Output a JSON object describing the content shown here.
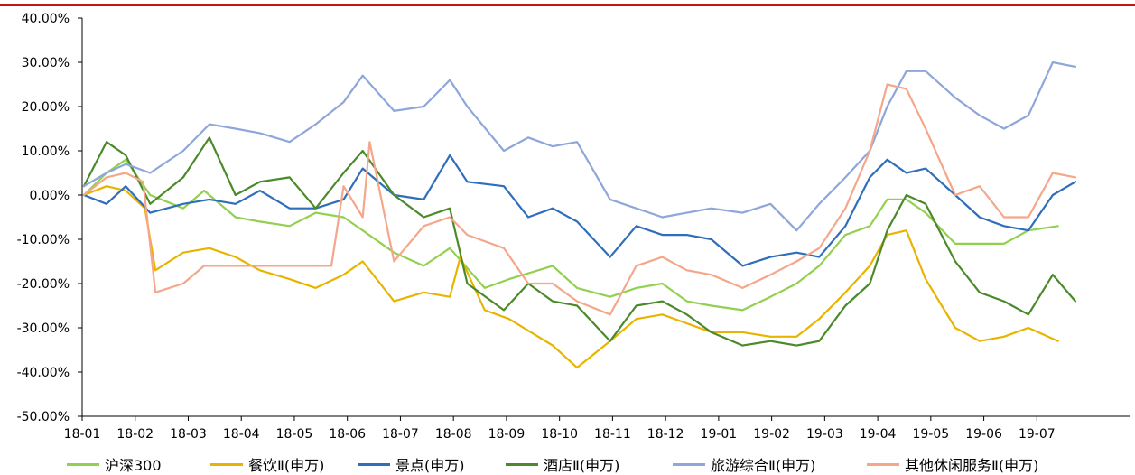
{
  "accent_color": "#c0171c",
  "chart_data": {
    "type": "line",
    "title": "",
    "xlabel": "",
    "ylabel": "",
    "ylim": [
      -50,
      40
    ],
    "y_unit": "%",
    "y_ticks": [
      "40.00%",
      "30.00%",
      "20.00%",
      "10.00%",
      "0.00%",
      "-10.00%",
      "-20.00%",
      "-30.00%",
      "-40.00%",
      "-50.00%"
    ],
    "x_ticks": [
      "18-01",
      "18-02",
      "18-03",
      "18-04",
      "18-05",
      "18-06",
      "18-07",
      "18-08",
      "18-09",
      "18-10",
      "18-11",
      "18-12",
      "19-01",
      "19-02",
      "19-03",
      "19-04",
      "19-05",
      "19-06",
      "19-07"
    ],
    "grid": false,
    "legend_position": "bottom",
    "series": [
      {
        "name": "沪深300",
        "color": "#92d050",
        "x": [
          "2018-01-02",
          "2018-01-15",
          "2018-01-26",
          "2018-02-09",
          "2018-02-28",
          "2018-03-12",
          "2018-03-30",
          "2018-04-13",
          "2018-04-30",
          "2018-05-15",
          "2018-05-31",
          "2018-06-11",
          "2018-06-29",
          "2018-07-16",
          "2018-07-31",
          "2018-08-20",
          "2018-09-03",
          "2018-09-28",
          "2018-10-12",
          "2018-10-31",
          "2018-11-15",
          "2018-11-30",
          "2018-12-14",
          "2018-12-28",
          "2019-01-15",
          "2019-01-31",
          "2019-02-15",
          "2019-02-28",
          "2019-03-15",
          "2019-03-29",
          "2019-04-08",
          "2019-04-19",
          "2019-04-30",
          "2019-05-17",
          "2019-05-31",
          "2019-06-14",
          "2019-06-28",
          "2019-07-15"
        ],
        "values": [
          0,
          5,
          8,
          0,
          -3,
          1,
          -5,
          -6,
          -7,
          -4,
          -5,
          -8,
          -13,
          -16,
          -12,
          -21,
          -19,
          -16,
          -21,
          -23,
          -21,
          -20,
          -24,
          -25,
          -26,
          -23,
          -20,
          -16,
          -9,
          -7,
          -1,
          -1,
          -4,
          -11,
          -11,
          -11,
          -8,
          -7
        ]
      },
      {
        "name": "餐饮Ⅱ(申万)",
        "color": "#e8b400",
        "x": [
          "2018-01-02",
          "2018-01-15",
          "2018-01-26",
          "2018-02-06",
          "2018-02-12",
          "2018-02-28",
          "2018-03-15",
          "2018-03-30",
          "2018-04-13",
          "2018-04-30",
          "2018-05-15",
          "2018-05-31",
          "2018-06-11",
          "2018-06-29",
          "2018-07-16",
          "2018-07-31",
          "2018-08-06",
          "2018-08-20",
          "2018-09-03",
          "2018-09-28",
          "2018-10-12",
          "2018-10-31",
          "2018-11-15",
          "2018-11-30",
          "2018-12-14",
          "2018-12-28",
          "2019-01-15",
          "2019-01-31",
          "2019-02-15",
          "2019-02-28",
          "2019-03-15",
          "2019-03-29",
          "2019-04-08",
          "2019-04-19",
          "2019-04-30",
          "2019-05-17",
          "2019-05-31",
          "2019-06-14",
          "2019-06-28",
          "2019-07-15"
        ],
        "values": [
          0,
          2,
          1,
          -3,
          -17,
          -13,
          -12,
          -14,
          -17,
          -19,
          -21,
          -18,
          -15,
          -24,
          -22,
          -23,
          -14,
          -26,
          -28,
          -34,
          -39,
          -33,
          -28,
          -27,
          -29,
          -31,
          -31,
          -32,
          -32,
          -28,
          -22,
          -16,
          -9,
          -8,
          -19,
          -30,
          -33,
          -32,
          -30,
          -33
        ]
      },
      {
        "name": "景点(申万)",
        "color": "#2f6eba",
        "x": [
          "2018-01-02",
          "2018-01-15",
          "2018-01-26",
          "2018-02-09",
          "2018-02-28",
          "2018-03-15",
          "2018-03-30",
          "2018-04-13",
          "2018-04-30",
          "2018-05-15",
          "2018-05-31",
          "2018-06-11",
          "2018-06-29",
          "2018-07-16",
          "2018-07-31",
          "2018-08-10",
          "2018-08-31",
          "2018-09-14",
          "2018-09-28",
          "2018-10-12",
          "2018-10-31",
          "2018-11-15",
          "2018-11-30",
          "2018-12-14",
          "2018-12-28",
          "2019-01-15",
          "2019-01-31",
          "2019-02-15",
          "2019-02-28",
          "2019-03-15",
          "2019-03-29",
          "2019-04-08",
          "2019-04-19",
          "2019-04-30",
          "2019-05-17",
          "2019-05-31",
          "2019-06-14",
          "2019-06-28",
          "2019-07-12",
          "2019-07-25"
        ],
        "values": [
          0,
          -2,
          2,
          -4,
          -2,
          -1,
          -2,
          1,
          -3,
          -3,
          -1,
          6,
          0,
          -1,
          9,
          3,
          2,
          -5,
          -3,
          -6,
          -14,
          -7,
          -9,
          -9,
          -10,
          -16,
          -14,
          -13,
          -14,
          -7,
          4,
          8,
          5,
          6,
          0,
          -5,
          -7,
          -8,
          0,
          3
        ]
      },
      {
        "name": "酒店Ⅱ(申万)",
        "color": "#4a8a2a",
        "x": [
          "2018-01-02",
          "2018-01-15",
          "2018-01-26",
          "2018-02-09",
          "2018-02-28",
          "2018-03-15",
          "2018-03-30",
          "2018-04-13",
          "2018-04-30",
          "2018-05-15",
          "2018-05-31",
          "2018-06-11",
          "2018-06-29",
          "2018-07-16",
          "2018-07-31",
          "2018-08-10",
          "2018-08-31",
          "2018-09-14",
          "2018-09-28",
          "2018-10-12",
          "2018-10-31",
          "2018-11-15",
          "2018-11-30",
          "2018-12-14",
          "2018-12-28",
          "2019-01-15",
          "2019-01-31",
          "2019-02-15",
          "2019-02-28",
          "2019-03-15",
          "2019-03-29",
          "2019-04-08",
          "2019-04-19",
          "2019-04-30",
          "2019-05-17",
          "2019-05-31",
          "2019-06-14",
          "2019-06-28",
          "2019-07-12",
          "2019-07-25"
        ],
        "values": [
          2,
          12,
          9,
          -2,
          4,
          13,
          0,
          3,
          4,
          -3,
          5,
          10,
          0,
          -5,
          -3,
          -20,
          -26,
          -20,
          -24,
          -25,
          -33,
          -25,
          -24,
          -27,
          -31,
          -34,
          -33,
          -34,
          -33,
          -25,
          -20,
          -8,
          0,
          -2,
          -15,
          -22,
          -24,
          -27,
          -18,
          -24
        ]
      },
      {
        "name": "旅游综合Ⅱ(申万)",
        "color": "#8ea6da",
        "x": [
          "2018-01-02",
          "2018-01-15",
          "2018-01-26",
          "2018-02-09",
          "2018-02-28",
          "2018-03-15",
          "2018-03-30",
          "2018-04-13",
          "2018-04-30",
          "2018-05-15",
          "2018-05-31",
          "2018-06-11",
          "2018-06-29",
          "2018-07-16",
          "2018-07-31",
          "2018-08-10",
          "2018-08-31",
          "2018-09-14",
          "2018-09-28",
          "2018-10-12",
          "2018-10-31",
          "2018-11-15",
          "2018-11-30",
          "2018-12-14",
          "2018-12-28",
          "2019-01-15",
          "2019-01-31",
          "2019-02-15",
          "2019-02-28",
          "2019-03-15",
          "2019-03-29",
          "2019-04-08",
          "2019-04-19",
          "2019-04-30",
          "2019-05-17",
          "2019-05-31",
          "2019-06-14",
          "2019-06-28",
          "2019-07-12",
          "2019-07-25"
        ],
        "values": [
          2,
          5,
          7,
          5,
          10,
          16,
          15,
          14,
          12,
          16,
          21,
          27,
          19,
          20,
          26,
          20,
          10,
          13,
          11,
          12,
          -1,
          -3,
          -5,
          -4,
          -3,
          -4,
          -2,
          -8,
          -2,
          4,
          10,
          20,
          28,
          28,
          22,
          18,
          15,
          18,
          30,
          29
        ]
      },
      {
        "name": "其他休闲服务Ⅱ(申万)",
        "color": "#f4a78a",
        "x": [
          "2018-01-02",
          "2018-01-15",
          "2018-01-26",
          "2018-02-05",
          "2018-02-12",
          "2018-02-28",
          "2018-03-12",
          "2018-03-30",
          "2018-04-13",
          "2018-04-30",
          "2018-05-15",
          "2018-05-24",
          "2018-05-31",
          "2018-06-11",
          "2018-06-15",
          "2018-06-29",
          "2018-07-16",
          "2018-07-31",
          "2018-08-10",
          "2018-08-31",
          "2018-09-14",
          "2018-09-28",
          "2018-10-12",
          "2018-10-31",
          "2018-11-15",
          "2018-11-30",
          "2018-12-14",
          "2018-12-28",
          "2019-01-15",
          "2019-01-31",
          "2019-02-15",
          "2019-02-28",
          "2019-03-15",
          "2019-03-29",
          "2019-04-08",
          "2019-04-19",
          "2019-04-30",
          "2019-05-17",
          "2019-05-31",
          "2019-06-14",
          "2019-06-28",
          "2019-07-12",
          "2019-07-25"
        ],
        "values": [
          0,
          4,
          5,
          3,
          -22,
          -20,
          -16,
          -16,
          -16,
          -16,
          -16,
          -16,
          2,
          -5,
          12,
          -15,
          -7,
          -5,
          -9,
          -12,
          -20,
          -20,
          -24,
          -27,
          -16,
          -14,
          -17,
          -18,
          -21,
          -18,
          -15,
          -12,
          -3,
          10,
          25,
          24,
          15,
          0,
          2,
          -5,
          -5,
          5,
          4
        ]
      }
    ]
  }
}
